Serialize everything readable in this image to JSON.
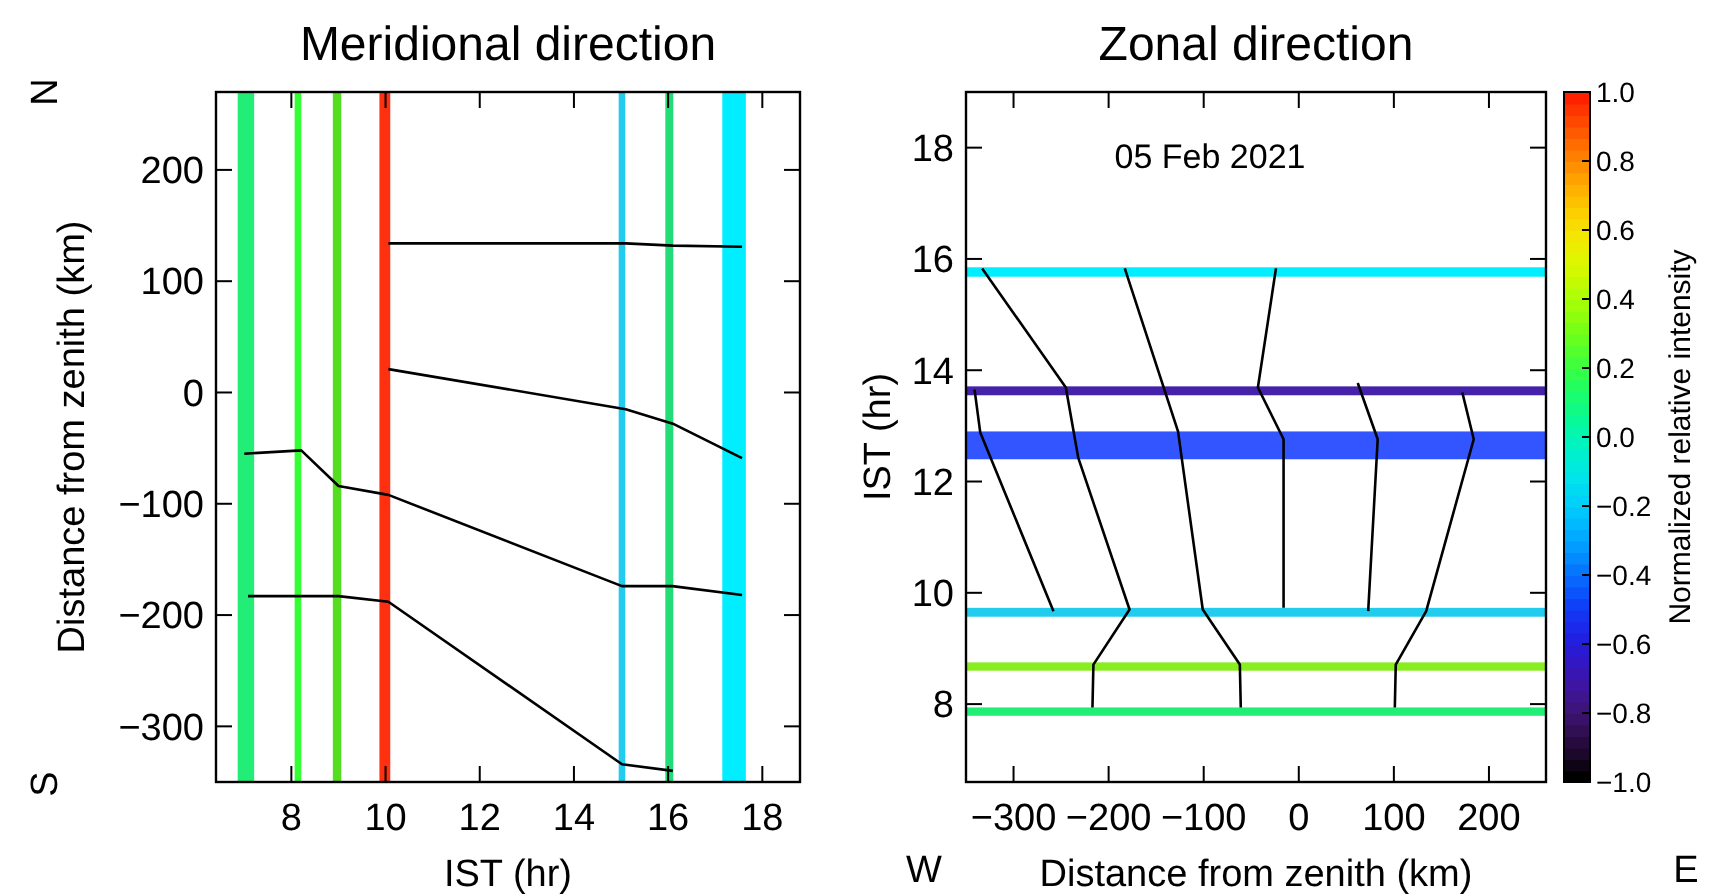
{
  "chart_data": [
    {
      "type": "line",
      "title": "Meridional direction",
      "xlabel": "IST (hr)",
      "ylabel": "Distance from zenith (km)",
      "xlim": [
        6.4,
        18.8
      ],
      "xticks": [
        8,
        10,
        12,
        14,
        16,
        18
      ],
      "ylim": [
        -350,
        270
      ],
      "yticks": [
        -300,
        -200,
        -100,
        0,
        100,
        200
      ],
      "annotations": [
        "N",
        "S"
      ],
      "series": [
        {
          "color": "#000000",
          "x": [
            10.06,
            15.1,
            16.1,
            17.57
          ],
          "values": [
            134,
            134,
            132,
            131
          ]
        },
        {
          "color": "#000000",
          "x": [
            10.06,
            15.1,
            16.1,
            17.57
          ],
          "values": [
            21,
            -15,
            -28,
            -59
          ]
        },
        {
          "color": "#000000",
          "x": [
            7.0,
            8.21,
            9.0,
            10.06,
            15.02,
            16.09,
            17.57
          ],
          "values": [
            -55,
            -52,
            -84,
            -92,
            -174,
            -174,
            -182
          ]
        },
        {
          "color": "#000000",
          "x": [
            7.08,
            9.0,
            10.06,
            15.02,
            16.1
          ],
          "values": [
            -183,
            -183,
            -188,
            -334,
            -340
          ]
        }
      ],
      "bands": [
        {
          "axis": "x",
          "from": 6.86,
          "to": 7.21,
          "color": "#22ee77"
        },
        {
          "axis": "x",
          "from": 8.07,
          "to": 8.21,
          "color": "#33ff33"
        },
        {
          "axis": "x",
          "from": 8.88,
          "to": 9.06,
          "color": "#55dd22"
        },
        {
          "axis": "x",
          "from": 9.87,
          "to": 10.1,
          "color": "#ff3010"
        },
        {
          "axis": "x",
          "from": 14.95,
          "to": 15.09,
          "color": "#22ccee"
        },
        {
          "axis": "x",
          "from": 15.94,
          "to": 16.11,
          "color": "#22dd77"
        },
        {
          "axis": "x",
          "from": 17.15,
          "to": 17.65,
          "color": "#00eeff"
        }
      ]
    },
    {
      "type": "line",
      "title": "Zonal direction",
      "xlabel": "Distance from zenith (km)",
      "ylabel": "IST (hr)",
      "xlim": [
        -350,
        260
      ],
      "xticks": [
        -300,
        -200,
        -100,
        0,
        100,
        200
      ],
      "ylim": [
        6.6,
        19
      ],
      "yticks": [
        8,
        10,
        12,
        14,
        16,
        18
      ],
      "annotations": [
        "05 Feb 2021",
        "W",
        "E"
      ],
      "clabel": "Normalized relative intensity",
      "clim": [
        -1,
        1
      ],
      "cticks": [
        {
          "value": -1,
          "label": "−1.0"
        },
        {
          "value": -0.8,
          "label": "−0.8"
        },
        {
          "value": -0.6,
          "label": "−0.6"
        },
        {
          "value": -0.4,
          "label": "−0.4"
        },
        {
          "value": -0.2,
          "label": "−0.2"
        },
        {
          "value": 0,
          "label": "0.0"
        },
        {
          "value": 0.2,
          "label": "0.2"
        },
        {
          "value": 0.4,
          "label": "0.4"
        },
        {
          "value": 0.6,
          "label": "0.6"
        },
        {
          "value": 0.8,
          "label": "0.8"
        },
        {
          "value": 1,
          "label": "1.0"
        }
      ],
      "series": [
        {
          "color": "#000000",
          "x": [
            -333,
            -245,
            -232,
            -178,
            -216,
            -217
          ],
          "values": [
            15.83,
            13.69,
            12.43,
            9.7,
            8.71,
            7.94
          ]
        },
        {
          "color": "#000000",
          "x": [
            -341,
            -335,
            -258
          ],
          "values": [
            13.65,
            12.88,
            9.67
          ]
        },
        {
          "color": "#000000",
          "x": [
            -183,
            -127,
            -101,
            -62,
            -61
          ],
          "values": [
            15.83,
            12.9,
            9.7,
            8.71,
            7.94
          ]
        },
        {
          "color": "#000000",
          "x": [
            -24,
            -43,
            -16,
            -16
          ],
          "values": [
            15.83,
            13.69,
            12.76,
            9.73
          ]
        },
        {
          "color": "#000000",
          "x": [
            62,
            83,
            73
          ],
          "values": [
            13.77,
            12.76,
            9.67
          ]
        },
        {
          "color": "#000000",
          "x": [
            172,
            184,
            134,
            102,
            101
          ],
          "values": [
            13.6,
            12.76,
            9.67,
            8.71,
            7.94
          ]
        }
      ],
      "bands": [
        {
          "axis": "y",
          "from": 15.68,
          "to": 15.85,
          "color": "#00eeff"
        },
        {
          "axis": "y",
          "from": 13.55,
          "to": 13.71,
          "color": "#4422aa"
        },
        {
          "axis": "y",
          "from": 12.4,
          "to": 12.9,
          "color": "#3355ff"
        },
        {
          "axis": "y",
          "from": 9.57,
          "to": 9.73,
          "color": "#22ccee"
        },
        {
          "axis": "y",
          "from": 8.6,
          "to": 8.75,
          "color": "#88ee22"
        },
        {
          "axis": "y",
          "from": 7.79,
          "to": 7.94,
          "color": "#22ee77"
        }
      ]
    }
  ]
}
